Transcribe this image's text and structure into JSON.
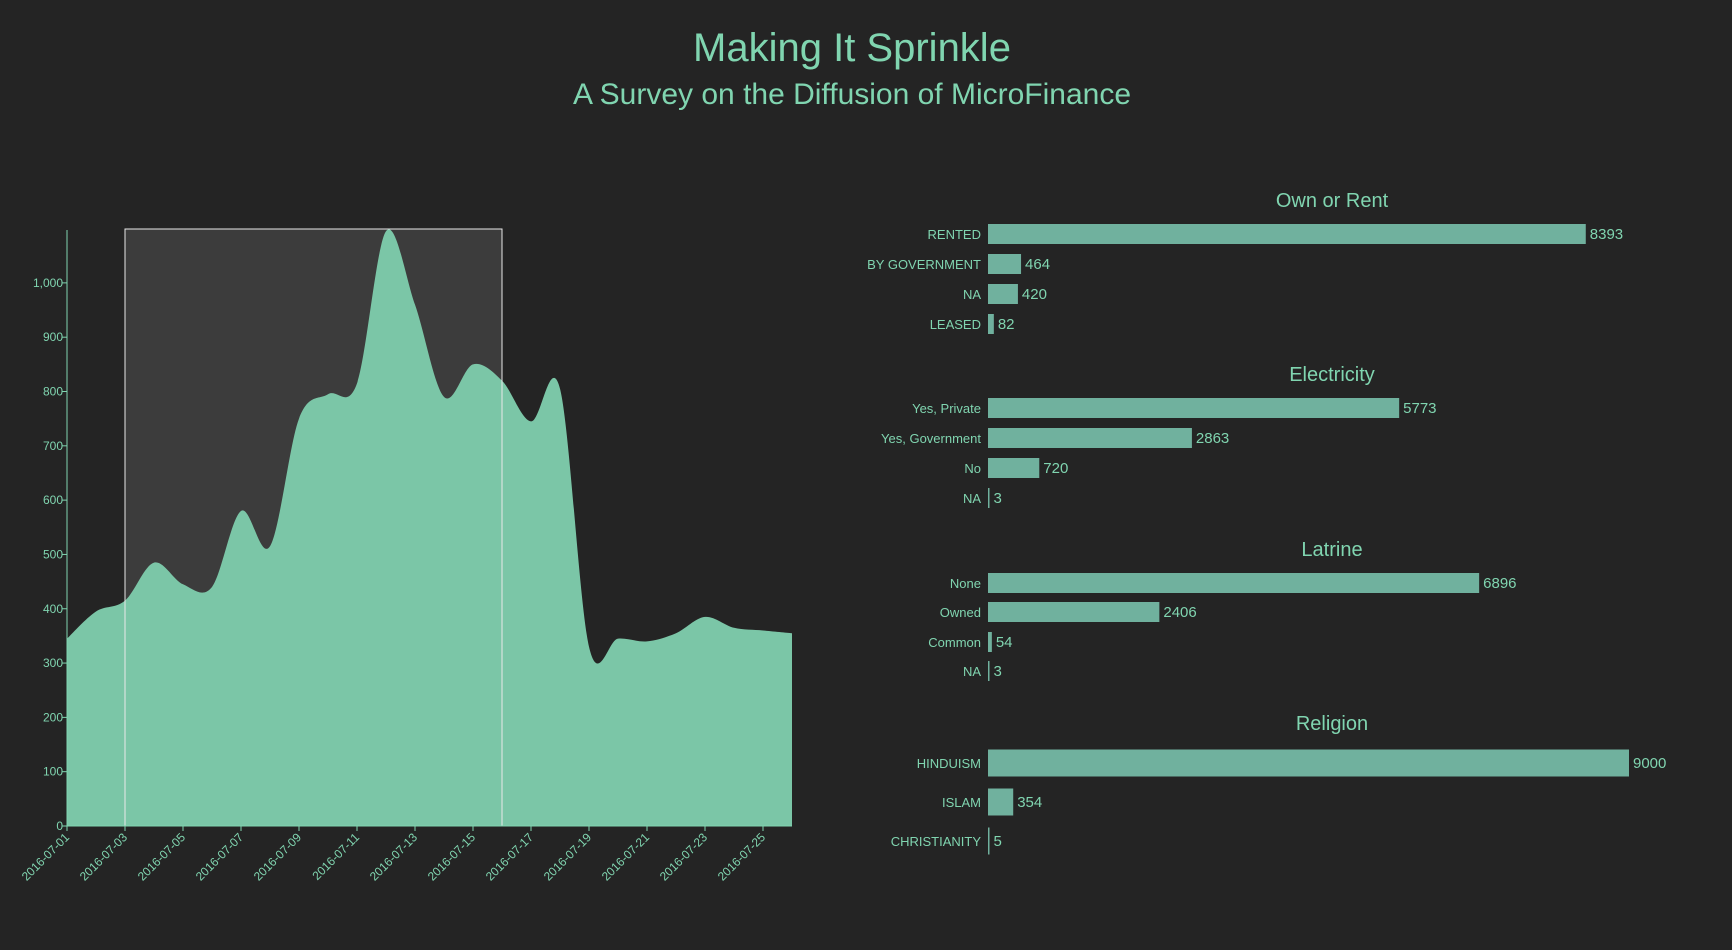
{
  "header": {
    "title": "Making It Sprinkle",
    "subtitle": "A Survey on the Diffusion of MicroFinance"
  },
  "colors": {
    "background": "#242424",
    "accent": "#80d5b0",
    "area_fill": "#7bc6a7",
    "bar_fill": "#70b19e",
    "brush_fill": "#3c3c3c",
    "brush_stroke": "#e8e8e8"
  },
  "chart_data": [
    {
      "type": "area",
      "title": "",
      "x": [
        "2016-07-01",
        "2016-07-02",
        "2016-07-03",
        "2016-07-04",
        "2016-07-05",
        "2016-07-06",
        "2016-07-07",
        "2016-07-08",
        "2016-07-09",
        "2016-07-10",
        "2016-07-11",
        "2016-07-12",
        "2016-07-13",
        "2016-07-14",
        "2016-07-15",
        "2016-07-16",
        "2016-07-17",
        "2016-07-18",
        "2016-07-19",
        "2016-07-20",
        "2016-07-21",
        "2016-07-22",
        "2016-07-23",
        "2016-07-24",
        "2016-07-25",
        "2016-07-26"
      ],
      "values": [
        345,
        395,
        415,
        485,
        445,
        440,
        580,
        515,
        750,
        795,
        815,
        1095,
        960,
        790,
        850,
        820,
        745,
        805,
        330,
        345,
        340,
        355,
        385,
        365,
        360,
        355
      ],
      "x_ticks": [
        "2016-07-01",
        "2016-07-03",
        "2016-07-05",
        "2016-07-07",
        "2016-07-09",
        "2016-07-11",
        "2016-07-13",
        "2016-07-15",
        "2016-07-17",
        "2016-07-19",
        "2016-07-21",
        "2016-07-23",
        "2016-07-25"
      ],
      "y_ticks": [
        "0",
        "100",
        "200",
        "300",
        "400",
        "500",
        "600",
        "700",
        "800",
        "900",
        "1,000"
      ],
      "ylim": [
        0,
        1090
      ],
      "brush": {
        "start": "2016-07-03",
        "end": "2016-07-16"
      },
      "xlabel": "",
      "ylabel": ""
    },
    {
      "type": "bar",
      "orientation": "horizontal",
      "title": "Own or Rent",
      "categories": [
        "RENTED",
        "BY GOVERNMENT",
        "NA",
        "LEASED"
      ],
      "values": [
        8393,
        464,
        420,
        82
      ]
    },
    {
      "type": "bar",
      "orientation": "horizontal",
      "title": "Electricity",
      "categories": [
        "Yes, Private",
        "Yes, Government",
        "No",
        "NA"
      ],
      "values": [
        5773,
        2863,
        720,
        3
      ]
    },
    {
      "type": "bar",
      "orientation": "horizontal",
      "title": "Latrine",
      "categories": [
        "None",
        "Owned",
        "Common",
        "NA"
      ],
      "values": [
        6896,
        2406,
        54,
        3
      ]
    },
    {
      "type": "bar",
      "orientation": "horizontal",
      "title": "Religion",
      "categories": [
        "HINDUISM",
        "ISLAM",
        "CHRISTIANITY"
      ],
      "values": [
        9000,
        354,
        5
      ]
    }
  ]
}
